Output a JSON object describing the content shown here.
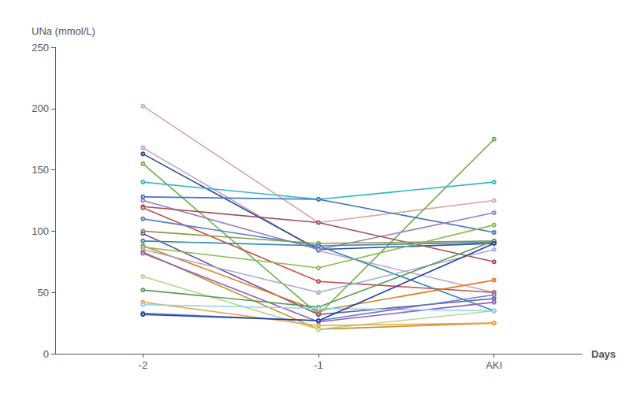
{
  "chart_data": {
    "type": "line",
    "xlabel": "Days",
    "ylabel": "UNa (mmol/L)",
    "categories": [
      "-2",
      "-1",
      "AKI"
    ],
    "ylim": [
      0,
      250
    ],
    "yticks": [
      0,
      50,
      100,
      150,
      200,
      250
    ],
    "grid": false,
    "series": [
      {
        "color": "#D8A8A8",
        "values": [
          202,
          107,
          125
        ]
      },
      {
        "color": "#C8A0C8",
        "values": [
          168,
          84,
          50
        ]
      },
      {
        "color": "#264E8A",
        "values": [
          163,
          85,
          90
        ]
      },
      {
        "color": "#70AD47",
        "values": [
          155,
          32,
          175
        ]
      },
      {
        "color": "#2EB8C8",
        "values": [
          140,
          126,
          140
        ]
      },
      {
        "color": "#4472C4",
        "values": [
          128,
          126,
          99
        ]
      },
      {
        "color": "#9B7DC8",
        "values": [
          125,
          85,
          115
        ]
      },
      {
        "color": "#A05050",
        "values": [
          120,
          107,
          75
        ]
      },
      {
        "color": "#C0504D",
        "values": [
          119,
          59,
          50
        ]
      },
      {
        "color": "#4F81BD",
        "values": [
          110,
          88,
          91
        ]
      },
      {
        "color": "#8B9B4A",
        "values": [
          100,
          90,
          92
        ]
      },
      {
        "color": "#7050A0",
        "values": [
          98,
          32,
          45
        ]
      },
      {
        "color": "#2E8BAE",
        "values": [
          92,
          88,
          35
        ]
      },
      {
        "color": "#E07820",
        "values": [
          88,
          35,
          60
        ]
      },
      {
        "color": "#8BBB59",
        "values": [
          87,
          70,
          105
        ]
      },
      {
        "color": "#A8A8D8",
        "values": [
          85,
          50,
          85
        ]
      },
      {
        "color": "#C09020",
        "values": [
          83,
          20,
          25
        ]
      },
      {
        "color": "#9060C0",
        "values": [
          82,
          26,
          42
        ]
      },
      {
        "color": "#B8D890",
        "values": [
          63,
          20,
          35
        ]
      },
      {
        "color": "#5B9B5A",
        "values": [
          52,
          38,
          92
        ]
      },
      {
        "color": "#F0A040",
        "values": [
          42,
          23,
          25
        ]
      },
      {
        "color": "#90D4E8",
        "values": [
          40,
          37,
          35
        ]
      },
      {
        "color": "#6080D0",
        "values": [
          33,
          27,
          48
        ]
      },
      {
        "color": "#2040A0",
        "values": [
          32,
          27,
          90
        ]
      }
    ]
  }
}
